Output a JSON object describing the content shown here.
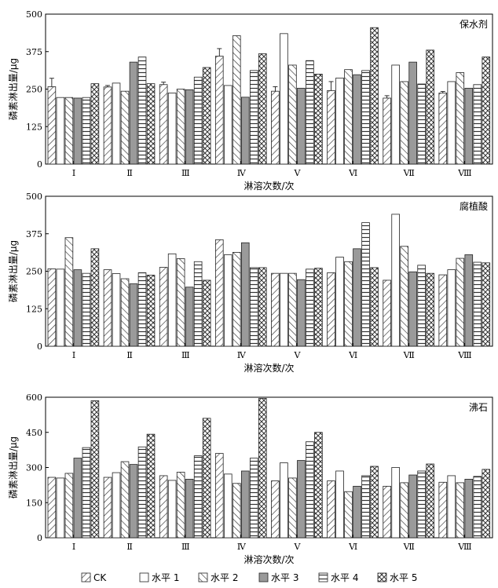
{
  "chart_data": {
    "legend": [
      "CK",
      "水平 1",
      "水平 2",
      "水平 3",
      "水平 4",
      "水平 5"
    ],
    "legend_position": "bottom",
    "panels": [
      {
        "type": "bar",
        "title": "保水剂",
        "xlabel": "淋溶次数/次",
        "ylabel": "磷素淋出量/μg",
        "ylim": [
          0,
          500
        ],
        "yticks": [
          "0",
          "125",
          "250",
          "375",
          "500"
        ],
        "categories": [
          "Ⅰ",
          "Ⅱ",
          "Ⅲ",
          "Ⅳ",
          "Ⅴ",
          "Ⅵ",
          "Ⅶ",
          "Ⅷ"
        ],
        "series": [
          {
            "name": "CK",
            "values": [
              258,
              257,
              265,
              360,
              243,
              245,
              220,
              237
            ],
            "errors": [
              28,
              5,
              8,
              25,
              15,
              30,
              8,
              5
            ]
          },
          {
            "name": "水平 1",
            "values": [
              222,
              270,
              237,
              262,
              435,
              287,
              330,
              275
            ]
          },
          {
            "name": "水平 2",
            "values": [
              222,
              243,
              250,
              428,
              330,
              315,
              275,
              305
            ]
          },
          {
            "name": "水平 3",
            "values": [
              220,
              340,
              248,
              223,
              253,
              298,
              340,
              253
            ]
          },
          {
            "name": "水平 4",
            "values": [
              222,
              357,
              290,
              312,
              345,
              312,
              267,
              265
            ]
          },
          {
            "name": "水平 5",
            "values": [
              268,
              268,
              322,
              368,
              300,
              455,
              380,
              357
            ]
          }
        ]
      },
      {
        "type": "bar",
        "title": "腐植酸",
        "xlabel": "淋溶次数/次",
        "ylabel": "磷素淋出量/μg",
        "ylim": [
          0,
          500
        ],
        "yticks": [
          "0",
          "125",
          "250",
          "375",
          "500"
        ],
        "categories": [
          "Ⅰ",
          "Ⅱ",
          "Ⅲ",
          "Ⅳ",
          "Ⅴ",
          "Ⅵ",
          "Ⅶ",
          "Ⅷ"
        ],
        "series": [
          {
            "name": "CK",
            "values": [
              258,
              255,
              263,
              355,
              243,
              245,
              220,
              238
            ]
          },
          {
            "name": "水平 1",
            "values": [
              257,
              242,
              308,
              305,
              243,
              297,
              440,
              255
            ]
          },
          {
            "name": "水平 2",
            "values": [
              362,
              225,
              292,
              313,
              243,
              282,
              333,
              293
            ]
          },
          {
            "name": "水平 3",
            "values": [
              255,
              208,
              197,
              345,
              222,
              325,
              248,
              305
            ]
          },
          {
            "name": "水平 4",
            "values": [
              243,
              245,
              282,
              262,
              257,
              412,
              270,
              280
            ]
          },
          {
            "name": "水平 5",
            "values": [
              325,
              237,
              220,
              262,
              260,
              262,
              243,
              278
            ]
          }
        ]
      },
      {
        "type": "bar",
        "title": "沸石",
        "xlabel": "淋溶次数/次",
        "ylabel": "磷素淋出量/μg",
        "ylim": [
          0,
          600
        ],
        "yticks": [
          "0",
          "150",
          "300",
          "450",
          "600"
        ],
        "categories": [
          "Ⅰ",
          "Ⅱ",
          "Ⅲ",
          "Ⅳ",
          "Ⅴ",
          "Ⅵ",
          "Ⅶ",
          "Ⅷ"
        ],
        "series": [
          {
            "name": "CK",
            "values": [
              258,
              258,
              265,
              360,
              243,
              243,
              220,
              237
            ]
          },
          {
            "name": "水平 1",
            "values": [
              255,
              278,
              245,
              272,
              320,
              285,
              300,
              265
            ]
          },
          {
            "name": "水平 2",
            "values": [
              275,
              325,
              280,
              232,
              255,
              197,
              235,
              235
            ]
          },
          {
            "name": "水平 3",
            "values": [
              340,
              313,
              250,
              285,
              330,
              220,
              268,
              250
            ]
          },
          {
            "name": "水平 4",
            "values": [
              385,
              388,
              350,
              340,
              410,
              265,
              285,
              262
            ]
          },
          {
            "name": "水平 5",
            "values": [
              585,
              442,
              510,
              595,
              450,
              305,
              315,
              292
            ]
          }
        ]
      }
    ]
  }
}
